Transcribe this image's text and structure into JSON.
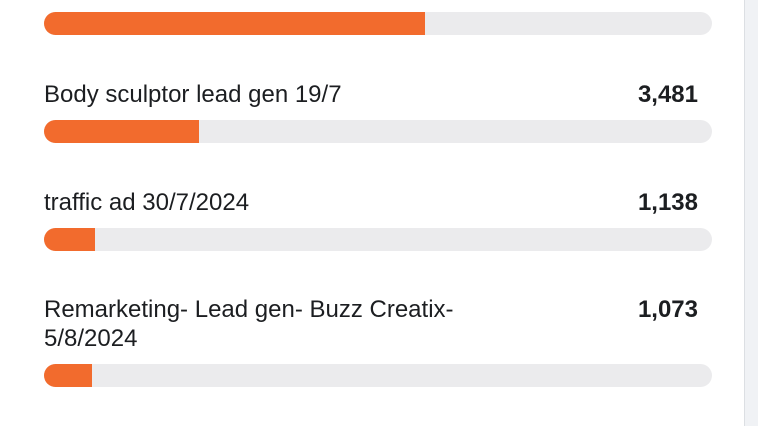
{
  "chart_data": {
    "type": "progress-list",
    "categories": [
      null,
      "Body sculptor lead gen 19/7",
      "traffic ad 30/7/2024",
      "Remarketing- Lead gen- Buzz Creatix- 5/8/2024"
    ],
    "values": [
      8550,
      3481,
      1138,
      1073
    ],
    "value_labels": [
      null,
      "3,481",
      "1,138",
      "1,073"
    ],
    "xlim": [
      0,
      15000
    ],
    "color": "#f26b2d"
  }
}
